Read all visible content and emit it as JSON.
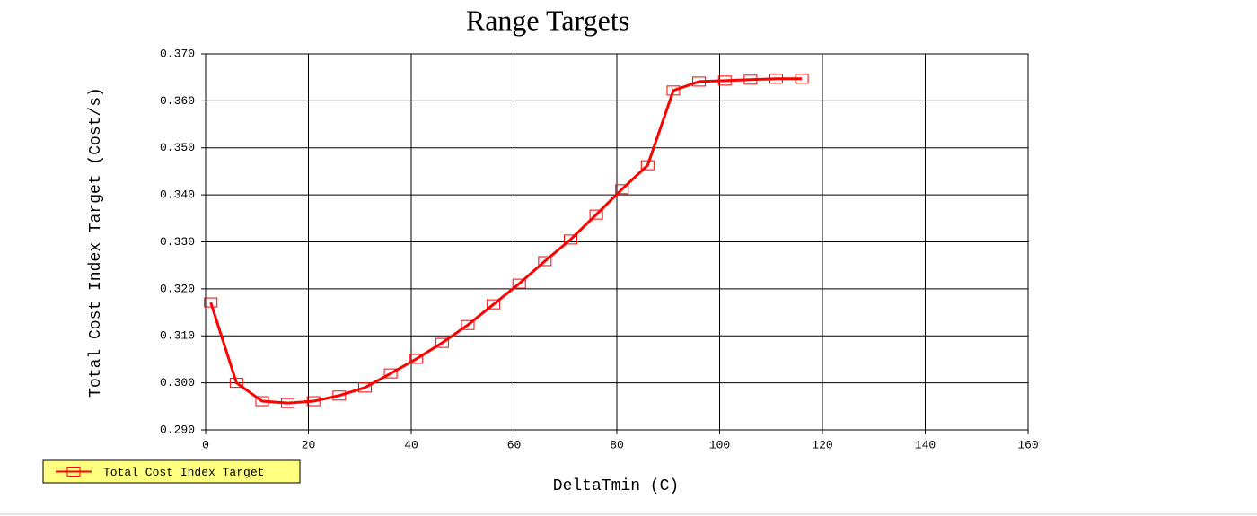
{
  "chart_data": {
    "type": "line",
    "title": "Range Targets",
    "x_label": "DeltaTmin (C)",
    "y_label": "Total Cost Index Target (Cost/s)",
    "x": [
      1,
      6,
      11,
      16,
      21,
      26,
      31,
      36,
      41,
      46,
      51,
      56,
      61,
      66,
      71,
      76,
      81,
      86,
      91,
      96,
      101,
      106,
      111,
      116
    ],
    "series": [
      {
        "name": "Total Cost Index Target",
        "color": "#ff0000",
        "values": [
          0.3171,
          0.3,
          0.2961,
          0.2957,
          0.2961,
          0.2973,
          0.299,
          0.302,
          0.3051,
          0.3085,
          0.3123,
          0.3167,
          0.3211,
          0.3259,
          0.3305,
          0.3358,
          0.3412,
          0.3463,
          0.3622,
          0.3641,
          0.3643,
          0.3645,
          0.3647,
          0.3647
        ]
      }
    ],
    "xlim": [
      0,
      160
    ],
    "xticks": [
      0,
      20,
      40,
      60,
      80,
      100,
      120,
      140,
      160
    ],
    "ylim": [
      0.29,
      0.37
    ],
    "yticks": [
      {
        "value": 0.29,
        "label": "0.290"
      },
      {
        "value": 0.3,
        "label": "0.300"
      },
      {
        "value": 0.31,
        "label": "0.310"
      },
      {
        "value": 0.32,
        "label": "0.320"
      },
      {
        "value": 0.33,
        "label": "0.330"
      },
      {
        "value": 0.34,
        "label": "0.340"
      },
      {
        "value": 0.35,
        "label": "0.350"
      },
      {
        "value": 0.36,
        "label": "0.360"
      },
      {
        "value": 0.37,
        "label": "0.370"
      }
    ],
    "grid": true,
    "legend": "bottom-left"
  }
}
